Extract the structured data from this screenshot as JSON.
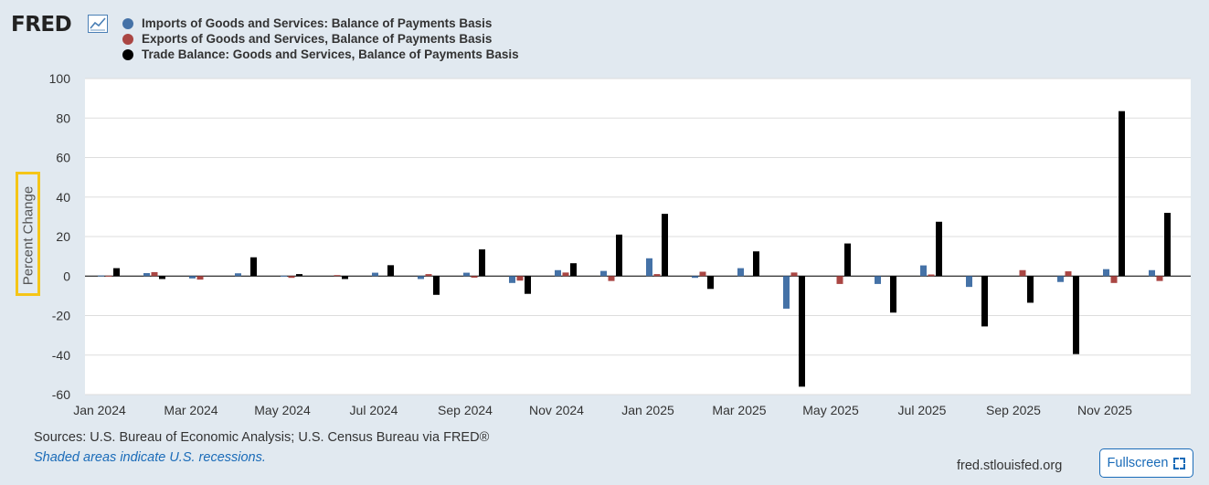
{
  "header": {
    "logo_text": "FRED",
    "logo_icon": "line-chart-icon"
  },
  "chart_data": {
    "type": "bar",
    "ylabel": "Percent Change",
    "ylim": [
      -60,
      100
    ],
    "yticks": [
      -60,
      -40,
      -20,
      0,
      20,
      40,
      60,
      80,
      100
    ],
    "ytick_labels": [
      "-60",
      "-40",
      "-20",
      "0",
      "20",
      "40",
      "60",
      "80",
      "100"
    ],
    "grid": true,
    "legend_position": "top-left",
    "x": [
      "Jan 2024",
      "Feb 2024",
      "Mar 2024",
      "Apr 2024",
      "May 2024",
      "Jun 2024",
      "Jul 2024",
      "Aug 2024",
      "Sep 2024",
      "Oct 2024",
      "Nov 2024",
      "Dec 2024",
      "Jan 2025",
      "Feb 2025",
      "Mar 2025",
      "Apr 2025",
      "May 2025",
      "Jun 2025",
      "Jul 2025",
      "Aug 2025",
      "Sep 2025",
      "Oct 2025",
      "Nov 2025",
      "Dec 2025"
    ],
    "xtick_labels": [
      "Jan 2024",
      "Mar 2024",
      "May 2024",
      "Jul 2024",
      "Sep 2024",
      "Nov 2024",
      "Jan 2025",
      "Mar 2025",
      "May 2025",
      "Jul 2025",
      "Sep 2025",
      "Nov 2025"
    ],
    "xtick_indices": [
      0,
      2,
      4,
      6,
      8,
      10,
      12,
      14,
      16,
      18,
      20,
      22
    ],
    "series": [
      {
        "name": "Imports of Goods and Services: Balance of Payments Basis",
        "color": "#4572a7",
        "values": [
          0.3,
          1.5,
          -1.2,
          1.4,
          0.2,
          0.0,
          1.7,
          -1.5,
          1.7,
          -3.5,
          3.0,
          2.6,
          9.0,
          -0.9,
          4.0,
          -16.5,
          0.0,
          -4.0,
          5.4,
          -5.5,
          0.0,
          -3.0,
          3.5,
          3.0
        ]
      },
      {
        "name": "Exports of Goods and Services, Balance of Payments Basis",
        "color": "#aa4643",
        "values": [
          0.2,
          2.0,
          -1.8,
          0.0,
          -0.9,
          0.5,
          0.0,
          1.0,
          -0.8,
          -2.3,
          1.8,
          -2.5,
          1.0,
          2.2,
          0.0,
          1.8,
          -4.0,
          0.0,
          0.8,
          0.0,
          3.0,
          2.4,
          -3.5,
          -2.5
        ]
      },
      {
        "name": "Trade Balance: Goods and Services, Balance of Payments Basis",
        "color": "#000000",
        "values": [
          4.0,
          -1.5,
          0.0,
          9.5,
          1.0,
          -1.5,
          5.5,
          -9.5,
          13.5,
          -9.0,
          6.5,
          21.0,
          31.5,
          -6.5,
          12.5,
          -56.0,
          16.5,
          -18.5,
          27.5,
          -25.5,
          -13.5,
          -39.5,
          83.5,
          32.0
        ]
      }
    ]
  },
  "footer": {
    "sources": "Sources: U.S. Bureau of Economic Analysis; U.S. Census Bureau via FRED®",
    "shaded_note": "Shaded areas indicate U.S. recessions.",
    "site": "fred.stlouisfed.org",
    "fullscreen_label": "Fullscreen",
    "fullscreen_icon": "fullscreen-icon"
  }
}
